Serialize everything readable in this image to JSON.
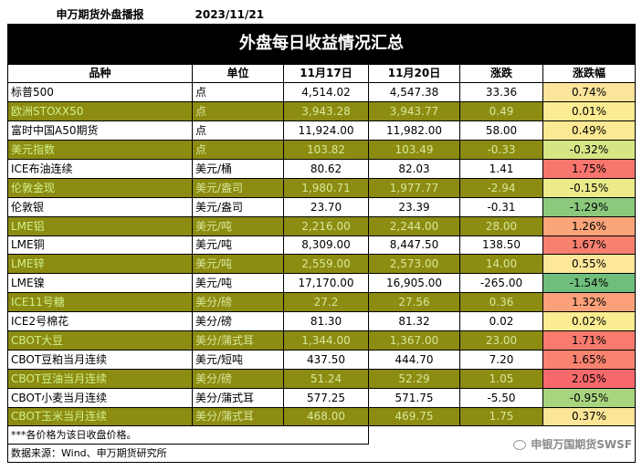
{
  "header": {
    "brand": "申万期货外盘播报",
    "date": "2023/11/21"
  },
  "title": "外盘每日收益情况汇总",
  "columns": [
    "品种",
    "单位",
    "11月17日",
    "11月20日",
    "涨跌",
    "涨跌幅"
  ],
  "rows": [
    {
      "name": "标普500",
      "unit": "点",
      "d1": "4,514.02",
      "d2": "4,547.38",
      "chg": "33.36",
      "pct": "0.74%",
      "shade": false,
      "pct_color": "#fde49b"
    },
    {
      "name": "欧洲STOXX50",
      "unit": "点",
      "d1": "3,943.28",
      "d2": "3,943.77",
      "chg": "0.49",
      "pct": "0.01%",
      "shade": true,
      "pct_color": "#fbec92"
    },
    {
      "name": "富时中国A50期货",
      "unit": "点",
      "d1": "11,924.00",
      "d2": "11,982.00",
      "chg": "58.00",
      "pct": "0.49%",
      "shade": false,
      "pct_color": "#fbe993"
    },
    {
      "name": "美元指数",
      "unit": "点",
      "d1": "103.82",
      "d2": "103.49",
      "chg": "-0.33",
      "pct": "-0.32%",
      "shade": true,
      "pct_color": "#d6e685"
    },
    {
      "name": "ICE布油连续",
      "unit": "美元/桶",
      "d1": "80.62",
      "d2": "82.03",
      "chg": "1.41",
      "pct": "1.75%",
      "shade": false,
      "pct_color": "#f8766d"
    },
    {
      "name": "伦敦金现",
      "unit": "美元/盎司",
      "d1": "1,980.71",
      "d2": "1,977.77",
      "chg": "-2.94",
      "pct": "-0.15%",
      "shade": true,
      "pct_color": "#ebeb8a"
    },
    {
      "name": "伦敦银",
      "unit": "美元/盎司",
      "d1": "23.70",
      "d2": "23.39",
      "chg": "-0.31",
      "pct": "-1.29%",
      "shade": false,
      "pct_color": "#8cc97d"
    },
    {
      "name": "LME铝",
      "unit": "美元/吨",
      "d1": "2,216.00",
      "d2": "2,244.00",
      "chg": "28.00",
      "pct": "1.26%",
      "shade": true,
      "pct_color": "#fba57b"
    },
    {
      "name": "LME铜",
      "unit": "美元/吨",
      "d1": "8,309.00",
      "d2": "8,447.50",
      "chg": "138.50",
      "pct": "1.67%",
      "shade": false,
      "pct_color": "#f8806f"
    },
    {
      "name": "LME锌",
      "unit": "美元/吨",
      "d1": "2,559.00",
      "d2": "2,573.00",
      "chg": "14.00",
      "pct": "0.55%",
      "shade": true,
      "pct_color": "#fde89a"
    },
    {
      "name": "LME镍",
      "unit": "美元/吨",
      "d1": "17,170.00",
      "d2": "16,905.00",
      "chg": "-265.00",
      "pct": "-1.54%",
      "shade": false,
      "pct_color": "#6fbe7b"
    },
    {
      "name": "ICE11号糖",
      "unit": "美分/磅",
      "d1": "27.2",
      "d2": "27.56",
      "chg": "0.36",
      "pct": "1.32%",
      "shade": true,
      "pct_color": "#fba07a"
    },
    {
      "name": "ICE2号棉花",
      "unit": "美分/磅",
      "d1": "81.30",
      "d2": "81.32",
      "chg": "0.02",
      "pct": "0.02%",
      "shade": false,
      "pct_color": "#fbec92"
    },
    {
      "name": "CBOT大豆",
      "unit": "美分/蒲式耳",
      "d1": "1,344.00",
      "d2": "1,367.00",
      "chg": "23.00",
      "pct": "1.71%",
      "shade": true,
      "pct_color": "#f87b6e"
    },
    {
      "name": "CBOT豆粕当月连续",
      "unit": "美元/短吨",
      "d1": "437.50",
      "d2": "444.70",
      "chg": "7.20",
      "pct": "1.65%",
      "shade": false,
      "pct_color": "#f88370"
    },
    {
      "name": "CBOT豆油当月连续",
      "unit": "美分/磅",
      "d1": "51.24",
      "d2": "52.29",
      "chg": "1.05",
      "pct": "2.05%",
      "shade": true,
      "pct_color": "#f8696b"
    },
    {
      "name": "CBOT小麦当月连续",
      "unit": "美分/蒲式耳",
      "d1": "577.25",
      "d2": "571.75",
      "chg": "-5.50",
      "pct": "-0.95%",
      "shade": false,
      "pct_color": "#a8d480"
    },
    {
      "name": "CBOT玉米当月连续",
      "unit": "美分/蒲式耳",
      "d1": "468.00",
      "d2": "469.75",
      "chg": "1.75",
      "pct": "0.37%",
      "shade": true,
      "pct_color": "#fbe597"
    }
  ],
  "footnote": "***各价格为该日收盘价格。",
  "source": "数据来源：Wind、申万期货研究所",
  "watermark": "申银万国期货SWSF",
  "colors": {
    "olive": "#8c8c12",
    "title_bg": "#000000"
  }
}
